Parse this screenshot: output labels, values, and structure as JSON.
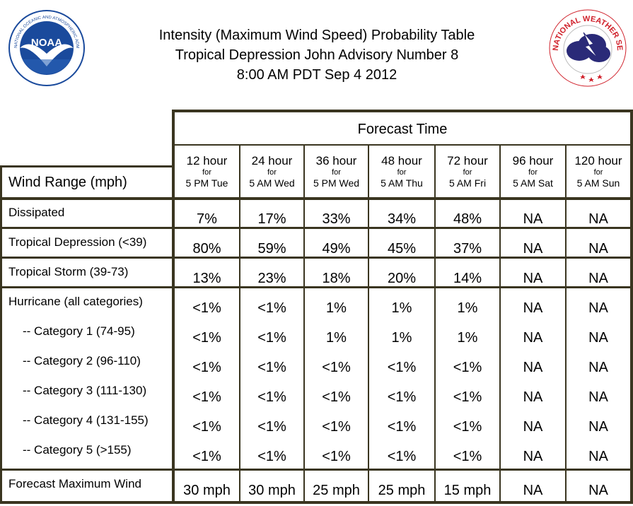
{
  "title": {
    "line1": "Intensity (Maximum Wind Speed) Probability Table",
    "line2": "Tropical Depression John Advisory Number 8",
    "line3": "8:00 AM PDT Sep 4 2012"
  },
  "logos": {
    "noaa": {
      "text": "NOAA",
      "ring_text": "NATIONAL OCEANIC AND ATMOSPHERIC ADMINISTRATION · U.S. DEPARTMENT OF COMMERCE",
      "colors": {
        "sky": "#1a4a9c",
        "gull": "#ffffff",
        "ring": "#ffffff"
      }
    },
    "nws": {
      "ring_text": "NATIONAL WEATHER SERVICE",
      "colors": {
        "ring_text": "#d0202a",
        "cloud": "#2a2a78",
        "bolt": "#ffffff"
      }
    }
  },
  "table": {
    "forecast_time_label": "Forecast Time",
    "wind_range_label": "Wind Range (mph)",
    "line_color": "#3a3520",
    "columns": [
      {
        "hours": "12 hour",
        "for": "for",
        "time": "5 PM Tue"
      },
      {
        "hours": "24 hour",
        "for": "for",
        "time": "5 AM Wed"
      },
      {
        "hours": "36 hour",
        "for": "for",
        "time": "5 PM Wed"
      },
      {
        "hours": "48 hour",
        "for": "for",
        "time": "5 AM Thu"
      },
      {
        "hours": "72 hour",
        "for": "for",
        "time": "5 AM Fri"
      },
      {
        "hours": "96 hour",
        "for": "for",
        "time": "5 AM Sat"
      },
      {
        "hours": "120 hour",
        "for": "for",
        "time": "5 AM Sun"
      }
    ],
    "rows": [
      {
        "label": "Dissipated",
        "values": [
          "7%",
          "17%",
          "33%",
          "34%",
          "48%",
          "NA",
          "NA"
        ]
      },
      {
        "label": "Tropical Depression (<39)",
        "values": [
          "80%",
          "59%",
          "49%",
          "45%",
          "37%",
          "NA",
          "NA"
        ]
      },
      {
        "label": "Tropical Storm (39-73)",
        "values": [
          "13%",
          "23%",
          "18%",
          "20%",
          "14%",
          "NA",
          "NA"
        ]
      },
      {
        "label": "Hurricane (all categories)",
        "values": [
          "<1%",
          "<1%",
          "1%",
          "1%",
          "1%",
          "NA",
          "NA"
        ]
      },
      {
        "label": "-- Category 1 (74-95)",
        "values": [
          "<1%",
          "<1%",
          "1%",
          "1%",
          "1%",
          "NA",
          "NA"
        ]
      },
      {
        "label": "-- Category 2 (96-110)",
        "values": [
          "<1%",
          "<1%",
          "<1%",
          "<1%",
          "<1%",
          "NA",
          "NA"
        ]
      },
      {
        "label": "-- Category 3 (111-130)",
        "values": [
          "<1%",
          "<1%",
          "<1%",
          "<1%",
          "<1%",
          "NA",
          "NA"
        ]
      },
      {
        "label": "-- Category 4 (131-155)",
        "values": [
          "<1%",
          "<1%",
          "<1%",
          "<1%",
          "<1%",
          "NA",
          "NA"
        ]
      },
      {
        "label": "-- Category 5 (>155)",
        "values": [
          "<1%",
          "<1%",
          "<1%",
          "<1%",
          "<1%",
          "NA",
          "NA"
        ]
      },
      {
        "label": "Forecast Maximum Wind",
        "values": [
          "30 mph",
          "30 mph",
          "25 mph",
          "25 mph",
          "15 mph",
          "NA",
          "NA"
        ]
      }
    ]
  }
}
